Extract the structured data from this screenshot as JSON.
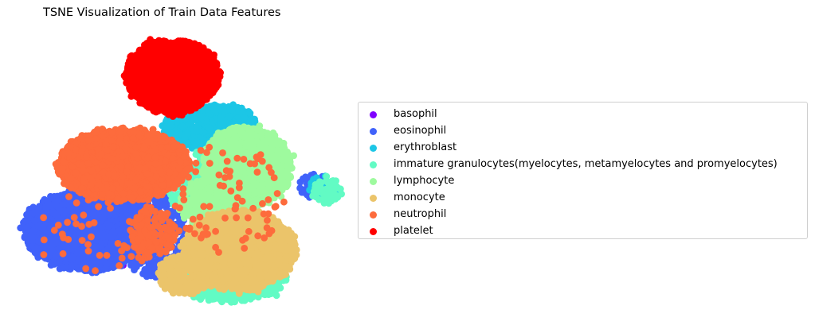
{
  "chart_data": {
    "type": "scatter",
    "title": "TSNE Visualization of Train Data Features",
    "xlabel": "",
    "ylabel": "",
    "axes_visible": false,
    "legend_position": "right",
    "series": [
      {
        "name": "basophil",
        "color": "#8000ff",
        "clusters": [
          {
            "cx": 230,
            "cy": 280,
            "rx": 120,
            "ry": 80,
            "n": 60
          }
        ]
      },
      {
        "name": "eosinophil",
        "color": "#4062fa",
        "clusters": [
          {
            "cx": 110,
            "cy": 290,
            "rx": 80,
            "ry": 50,
            "n": 2400
          },
          {
            "cx": 190,
            "cy": 290,
            "rx": 40,
            "ry": 60,
            "n": 400
          },
          {
            "cx": 395,
            "cy": 235,
            "rx": 18,
            "ry": 16,
            "n": 50
          }
        ]
      },
      {
        "name": "erythroblast",
        "color": "#1cc6e6",
        "clusters": [
          {
            "cx": 265,
            "cy": 160,
            "rx": 60,
            "ry": 28,
            "n": 700
          },
          {
            "cx": 405,
            "cy": 235,
            "rx": 16,
            "ry": 14,
            "n": 40
          }
        ]
      },
      {
        "name": "immature granulocytes(myelocytes, metamyelocytes and promyelocytes)",
        "color": "#62fbc4",
        "clusters": [
          {
            "cx": 290,
            "cy": 345,
            "rx": 70,
            "ry": 35,
            "n": 900
          },
          {
            "cx": 250,
            "cy": 230,
            "rx": 40,
            "ry": 40,
            "n": 300
          },
          {
            "cx": 410,
            "cy": 240,
            "rx": 18,
            "ry": 16,
            "n": 60
          }
        ]
      },
      {
        "name": "lymphocyte",
        "color": "#9efa9e",
        "clusters": [
          {
            "cx": 310,
            "cy": 210,
            "rx": 55,
            "ry": 50,
            "n": 1800
          },
          {
            "cx": 265,
            "cy": 255,
            "rx": 40,
            "ry": 30,
            "n": 500
          }
        ]
      },
      {
        "name": "monocyte",
        "color": "#ebc46a",
        "clusters": [
          {
            "cx": 300,
            "cy": 315,
            "rx": 70,
            "ry": 50,
            "n": 2000
          },
          {
            "cx": 235,
            "cy": 345,
            "rx": 35,
            "ry": 25,
            "n": 400
          }
        ]
      },
      {
        "name": "neutrophil",
        "color": "#fd6b3c",
        "clusters": [
          {
            "cx": 155,
            "cy": 207,
            "rx": 82,
            "ry": 44,
            "n": 3000
          },
          {
            "cx": 190,
            "cy": 295,
            "rx": 30,
            "ry": 30,
            "n": 150
          },
          {
            "cx": 130,
            "cy": 290,
            "rx": 90,
            "ry": 50,
            "n": 60
          },
          {
            "cx": 290,
            "cy": 250,
            "rx": 70,
            "ry": 70,
            "n": 80
          }
        ]
      },
      {
        "name": "platelet",
        "color": "#ff0000",
        "clusters": [
          {
            "cx": 216,
            "cy": 95,
            "rx": 58,
            "ry": 44,
            "n": 2600
          },
          {
            "cx": 215,
            "cy": 132,
            "rx": 30,
            "ry": 14,
            "n": 150
          }
        ]
      }
    ]
  }
}
